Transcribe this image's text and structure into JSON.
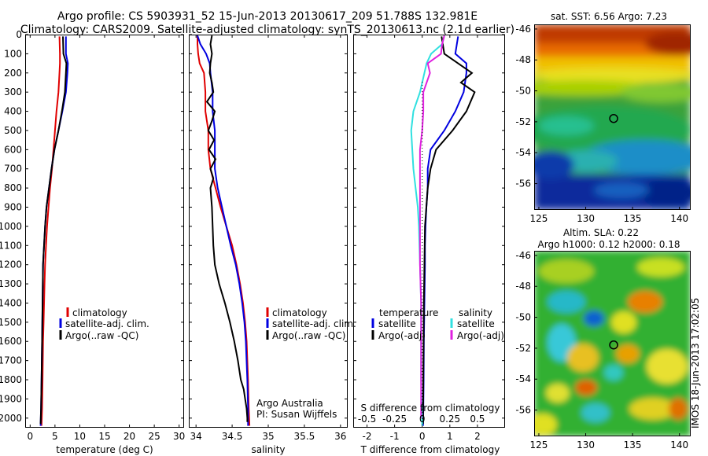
{
  "header": {
    "line1": "Argo profile: CS 5903931_52 15-Jun-2013 20130617_209 51.788S 132.981E",
    "line2": "Climatology: CARS2009. Satellite-adjusted climatology: synTS_20130613.nc (2.1d earlier)"
  },
  "colors": {
    "climatology": "#e00000",
    "satellite": "#0000e0",
    "argo": "#000000",
    "sal_satellite": "#30e0e0",
    "sal_argo": "#e020e0"
  },
  "chart_data": [
    {
      "type": "line",
      "id": "temperature",
      "xlabel": "temperature (deg C)",
      "xlim": [
        -1,
        31
      ],
      "xticks": [
        0,
        5,
        10,
        15,
        20,
        25,
        30
      ],
      "ylim": [
        2050,
        0
      ],
      "yticks": [
        0,
        100,
        200,
        300,
        400,
        500,
        600,
        700,
        800,
        900,
        1000,
        1100,
        1200,
        1300,
        1400,
        1500,
        1600,
        1700,
        1800,
        1900,
        2000
      ],
      "legend": [
        "climatology",
        "satellite-adj. clim.",
        "Argo(..raw -QC)"
      ],
      "series": [
        {
          "name": "climatology",
          "color": "#e00000",
          "x": [
            5.9,
            6.0,
            6.0,
            5.9,
            5.7,
            5.3,
            5.0,
            4.7,
            4.4,
            4.0,
            3.7,
            3.4,
            3.2,
            3.0,
            2.9,
            2.8,
            2.7,
            2.6,
            2.5,
            2.4,
            2.3
          ],
          "y": [
            10,
            100,
            150,
            200,
            300,
            400,
            500,
            600,
            700,
            800,
            900,
            1000,
            1100,
            1200,
            1300,
            1400,
            1500,
            1600,
            1800,
            1950,
            2040
          ]
        },
        {
          "name": "satellite-adj. clim.",
          "color": "#0000e0",
          "x": [
            7.2,
            7.2,
            7.6,
            7.5,
            7.2,
            6.5,
            5.7,
            4.9,
            4.3,
            3.8,
            3.3,
            3.0,
            2.8,
            2.6,
            2.5,
            2.4,
            2.3,
            2.2,
            2.1
          ],
          "y": [
            10,
            100,
            150,
            200,
            300,
            400,
            500,
            600,
            700,
            800,
            900,
            1000,
            1100,
            1200,
            1400,
            1600,
            1800,
            1950,
            2040
          ]
        },
        {
          "name": "Argo(..raw -QC)",
          "color": "#000000",
          "x": [
            6.6,
            6.7,
            7.3,
            7.2,
            7.0,
            6.4,
            5.7,
            4.9,
            4.3,
            3.8,
            3.3,
            3.0,
            2.8,
            2.6,
            2.5,
            2.4,
            2.3,
            2.2,
            2.1
          ],
          "y": [
            10,
            100,
            150,
            200,
            300,
            400,
            500,
            600,
            700,
            800,
            900,
            1000,
            1100,
            1200,
            1400,
            1600,
            1800,
            1950,
            2030
          ]
        }
      ]
    },
    {
      "type": "line",
      "id": "salinity",
      "xlabel": "salinity",
      "xlim": [
        33.9,
        36.1
      ],
      "xticks": [
        34,
        34.5,
        35,
        35.5,
        36
      ],
      "ylim": [
        2050,
        0
      ],
      "legend": [
        "climatology",
        "satellite-adj. clim.",
        "Argo(..raw -QC)"
      ],
      "annotation": [
        "Argo Australia",
        "PI: Susan Wijffels"
      ],
      "series": [
        {
          "name": "climatology",
          "color": "#e00000",
          "x": [
            34.02,
            34.02,
            34.03,
            34.05,
            34.11,
            34.13,
            34.13,
            34.17,
            34.17,
            34.2,
            34.27,
            34.34,
            34.42,
            34.5,
            34.56,
            34.61,
            34.65,
            34.68,
            34.7,
            34.72,
            34.73,
            34.74
          ],
          "y": [
            5,
            50,
            100,
            150,
            200,
            300,
            400,
            500,
            600,
            700,
            800,
            900,
            1000,
            1100,
            1200,
            1300,
            1400,
            1500,
            1600,
            1800,
            1950,
            2040
          ]
        },
        {
          "name": "satellite-adj. clim.",
          "color": "#0000e0",
          "x": [
            34.02,
            34.06,
            34.14,
            34.19,
            34.2,
            34.23,
            34.23,
            34.26,
            34.26,
            34.26,
            34.3,
            34.36,
            34.42,
            34.48,
            34.55,
            34.6,
            34.64,
            34.67,
            34.69,
            34.71,
            34.72,
            34.72
          ],
          "y": [
            5,
            50,
            100,
            150,
            200,
            300,
            400,
            500,
            600,
            700,
            800,
            900,
            1000,
            1100,
            1200,
            1300,
            1400,
            1500,
            1600,
            1800,
            1950,
            2040
          ]
        },
        {
          "name": "Argo(..raw -QC)",
          "color": "#000000",
          "x": [
            34.22,
            34.2,
            34.22,
            34.2,
            34.19,
            34.22,
            34.24,
            34.15,
            34.26,
            34.22,
            34.17,
            34.25,
            34.18,
            34.27,
            34.2,
            34.24,
            34.2,
            34.22,
            34.23,
            34.24,
            34.26,
            34.32,
            34.4,
            34.47,
            34.53,
            34.58,
            34.62,
            34.66,
            34.68,
            34.7,
            34.71,
            34.71
          ],
          "y": [
            5,
            50,
            100,
            150,
            200,
            250,
            300,
            350,
            400,
            450,
            500,
            550,
            600,
            650,
            700,
            750,
            800,
            900,
            1000,
            1100,
            1200,
            1300,
            1400,
            1500,
            1600,
            1700,
            1800,
            1850,
            1900,
            1950,
            2000,
            2020
          ]
        }
      ]
    },
    {
      "type": "line",
      "id": "difference",
      "xlabel": "T difference from climatology",
      "xlabel_top": "S difference from climatology",
      "xlim": [
        -2.5,
        3.0
      ],
      "xticks": [
        -2,
        -1,
        0,
        1,
        2
      ],
      "xtick_labels": [
        "-2",
        "-1",
        "0",
        "1",
        "2"
      ],
      "s_xticks": [
        -0.5,
        -0.25,
        0,
        0.25,
        0.5
      ],
      "s_xtick_labels": [
        "-0.5",
        "-0.25",
        "0",
        "0.25",
        "0.5"
      ],
      "s_to_t_scale": 4,
      "ylim": [
        2050,
        0
      ],
      "legend_headers": [
        "temperature",
        "salinity"
      ],
      "legend": [
        "satellite",
        "Argo(-adj)",
        "satellite",
        "Argo(-adj)"
      ],
      "series": [
        {
          "name": "satellite",
          "group": "temperature",
          "color": "#0000e0",
          "x": [
            1.3,
            1.2,
            1.6,
            1.6,
            1.5,
            1.2,
            0.8,
            0.3,
            0.2,
            0.2,
            0.15,
            0.12,
            0.1,
            0.1,
            0.08,
            0.06,
            0.05,
            0.04,
            0.03
          ],
          "y": [
            10,
            100,
            150,
            200,
            300,
            400,
            500,
            600,
            700,
            800,
            900,
            1000,
            1100,
            1200,
            1400,
            1600,
            1800,
            1950,
            2040
          ]
        },
        {
          "name": "Argo(-adj)",
          "group": "temperature",
          "color": "#000000",
          "x": [
            0.7,
            0.8,
            1.3,
            1.8,
            1.4,
            1.9,
            1.6,
            1.1,
            0.5,
            0.3,
            0.2,
            0.15,
            0.1,
            0.08,
            0.06,
            0.05,
            0.04,
            0.03
          ],
          "y": [
            10,
            100,
            150,
            200,
            250,
            300,
            400,
            500,
            600,
            700,
            800,
            900,
            1000,
            1200,
            1400,
            1600,
            1800,
            2030
          ]
        },
        {
          "name": "satellite",
          "group": "salinity",
          "color": "#30e0e0",
          "x": [
            0.2,
            0.18,
            0.08,
            0.04,
            0.02,
            -0.02,
            -0.08,
            -0.1,
            -0.09,
            -0.08,
            -0.06,
            -0.04,
            -0.03,
            -0.02,
            -0.01,
            -0.01,
            -0.01,
            0.0
          ],
          "y": [
            5,
            50,
            100,
            150,
            200,
            300,
            400,
            500,
            600,
            700,
            800,
            900,
            1000,
            1200,
            1400,
            1600,
            1800,
            2040
          ]
        },
        {
          "name": "Argo(-adj)",
          "group": "salinity",
          "color": "#e020e0",
          "x": [
            0.2,
            0.18,
            0.17,
            0.05,
            0.07,
            0.01,
            0.01,
            0.0,
            -0.02,
            -0.02,
            -0.02,
            -0.02,
            -0.02,
            -0.01,
            -0.01,
            -0.01
          ],
          "y": [
            5,
            50,
            100,
            150,
            200,
            300,
            400,
            500,
            600,
            700,
            800,
            1000,
            1200,
            1400,
            1600,
            2000
          ]
        }
      ]
    },
    {
      "type": "heatmap",
      "id": "sst_map",
      "title": "sat. SST: 6.56 Argo: 7.23",
      "xticks": [
        125,
        130,
        135,
        140
      ],
      "yticks": [
        -46,
        -48,
        -50,
        -52,
        -54,
        -56
      ],
      "xlim": [
        124.5,
        141.2
      ],
      "ylim": [
        -57.7,
        -45.7
      ],
      "marker": {
        "lon": 132.981,
        "lat": -51.788
      }
    },
    {
      "type": "heatmap",
      "id": "sla_map",
      "title": "Altim. SLA: 0.22",
      "subtitle": "Argo h1000: 0.12 h2000: 0.18",
      "xticks": [
        125,
        130,
        135,
        140
      ],
      "yticks": [
        -46,
        -48,
        -50,
        -52,
        -54,
        -56
      ],
      "xlim": [
        124.5,
        141.2
      ],
      "ylim": [
        -57.7,
        -45.7
      ],
      "marker": {
        "lon": 132.981,
        "lat": -51.788
      }
    }
  ],
  "footer_stamp": "IMOS 18-Jun-2013 17:02:05"
}
